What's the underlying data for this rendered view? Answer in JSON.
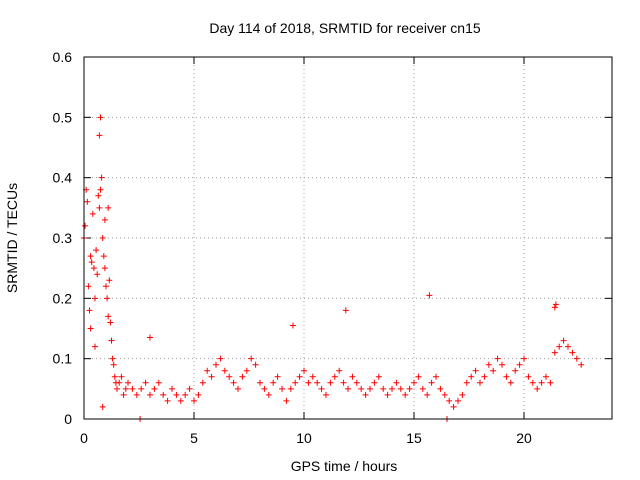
{
  "chart_data": {
    "type": "scatter",
    "title": "Day 114 of 2018, SRMTID for receiver cn15",
    "xlabel": "GPS time / hours",
    "ylabel": "SRMTID / TECUs",
    "xlim": [
      0,
      24
    ],
    "ylim": [
      0,
      0.6
    ],
    "x_ticks": [
      0,
      5,
      10,
      15,
      20
    ],
    "y_ticks": [
      0,
      0.1,
      0.2,
      0.3,
      0.4,
      0.5,
      0.6
    ],
    "x_tick_labels": [
      "0",
      "5",
      "10",
      "15",
      "20"
    ],
    "y_tick_labels": [
      "0",
      "0.1",
      "0.2",
      "0.3",
      "0.4",
      "0.5",
      "0.6"
    ],
    "grid": true,
    "marker": "+",
    "series": [
      {
        "name": "SRMTID",
        "color": "#ff0000",
        "x": [
          0.0,
          0.05,
          0.1,
          0.15,
          0.2,
          0.25,
          0.3,
          0.35,
          0.4,
          0.45,
          0.5,
          0.55,
          0.6,
          0.65,
          0.7,
          0.75,
          0.8,
          0.85,
          0.9,
          0.95,
          1.0,
          1.05,
          1.1,
          1.15,
          1.2,
          1.25,
          1.3,
          1.35,
          1.4,
          1.45,
          1.5,
          1.6,
          1.7,
          1.8,
          1.9,
          2.0,
          2.2,
          2.4,
          2.6,
          2.8,
          3.0,
          3.2,
          3.4,
          3.6,
          3.8,
          4.0,
          4.2,
          4.4,
          4.6,
          4.8,
          5.0,
          5.2,
          5.4,
          5.6,
          5.8,
          6.0,
          6.2,
          6.4,
          6.6,
          6.8,
          7.0,
          7.2,
          7.4,
          7.6,
          7.8,
          8.0,
          8.2,
          8.4,
          8.6,
          8.8,
          9.0,
          9.2,
          9.4,
          9.6,
          9.8,
          10.0,
          10.2,
          10.4,
          10.6,
          10.8,
          11.0,
          11.2,
          11.4,
          11.6,
          11.8,
          12.0,
          12.2,
          12.4,
          12.6,
          12.8,
          13.0,
          13.2,
          13.4,
          13.6,
          13.8,
          14.0,
          14.2,
          14.4,
          14.6,
          14.8,
          15.0,
          15.2,
          15.4,
          15.6,
          15.8,
          16.0,
          16.2,
          16.4,
          16.6,
          16.8,
          17.0,
          17.2,
          17.4,
          17.6,
          17.8,
          18.0,
          18.2,
          18.4,
          18.6,
          18.8,
          19.0,
          19.2,
          19.4,
          19.6,
          19.8,
          20.0,
          20.2,
          20.4,
          20.6,
          20.8,
          21.0,
          21.2,
          21.4,
          21.6,
          21.8,
          22.0,
          22.2,
          22.4,
          22.6,
          0.75,
          0.7,
          15.7,
          2.55,
          16.5,
          3.0,
          9.5,
          11.9,
          21.45,
          21.4,
          0.95,
          0.3,
          0.5,
          1.1,
          0.85
        ],
        "y": [
          0.3,
          0.32,
          0.38,
          0.36,
          0.22,
          0.18,
          0.15,
          0.26,
          0.34,
          0.25,
          0.2,
          0.28,
          0.24,
          0.37,
          0.35,
          0.38,
          0.4,
          0.3,
          0.27,
          0.25,
          0.22,
          0.2,
          0.17,
          0.23,
          0.16,
          0.13,
          0.1,
          0.09,
          0.07,
          0.06,
          0.05,
          0.06,
          0.07,
          0.04,
          0.05,
          0.06,
          0.05,
          0.04,
          0.05,
          0.06,
          0.04,
          0.05,
          0.06,
          0.04,
          0.03,
          0.05,
          0.04,
          0.03,
          0.04,
          0.05,
          0.03,
          0.04,
          0.06,
          0.08,
          0.07,
          0.09,
          0.1,
          0.08,
          0.07,
          0.06,
          0.05,
          0.07,
          0.08,
          0.1,
          0.09,
          0.06,
          0.05,
          0.04,
          0.06,
          0.07,
          0.05,
          0.03,
          0.05,
          0.06,
          0.07,
          0.08,
          0.06,
          0.07,
          0.06,
          0.05,
          0.04,
          0.06,
          0.07,
          0.08,
          0.06,
          0.05,
          0.07,
          0.06,
          0.05,
          0.04,
          0.05,
          0.06,
          0.07,
          0.05,
          0.04,
          0.05,
          0.06,
          0.05,
          0.04,
          0.05,
          0.06,
          0.07,
          0.05,
          0.04,
          0.06,
          0.07,
          0.05,
          0.04,
          0.03,
          0.02,
          0.03,
          0.04,
          0.06,
          0.07,
          0.08,
          0.06,
          0.07,
          0.09,
          0.08,
          0.1,
          0.09,
          0.07,
          0.06,
          0.08,
          0.09,
          0.1,
          0.07,
          0.06,
          0.05,
          0.06,
          0.07,
          0.06,
          0.11,
          0.12,
          0.13,
          0.12,
          0.11,
          0.1,
          0.09,
          0.5,
          0.47,
          0.205,
          0.0,
          0.0,
          0.135,
          0.155,
          0.18,
          0.19,
          0.185,
          0.33,
          0.27,
          0.12,
          0.35,
          0.02
        ]
      }
    ]
  }
}
